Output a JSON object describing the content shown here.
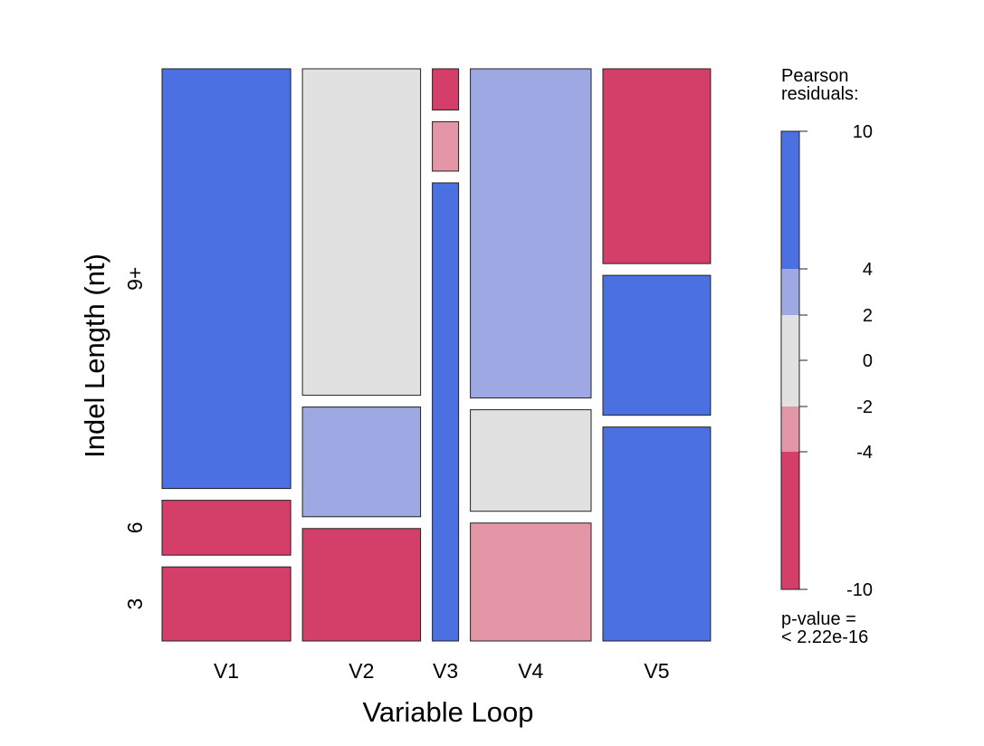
{
  "chart_data": {
    "type": "mosaic",
    "xlabel": "Variable Loop",
    "ylabel": "Indel Length (nt)",
    "x_categories": [
      "V1",
      "V2",
      "V3",
      "V4",
      "V5"
    ],
    "y_categories": [
      "3",
      "6",
      "9+"
    ],
    "cells": [
      {
        "x": "V1",
        "y": "3",
        "proportion": 0.135,
        "residual_band": "<-4"
      },
      {
        "x": "V1",
        "y": "6",
        "proportion": 0.1,
        "residual_band": "<-4"
      },
      {
        "x": "V1",
        "y": "9+",
        "proportion": 0.765,
        "residual_band": ">4"
      },
      {
        "x": "V2",
        "y": "3",
        "proportion": 0.205,
        "residual_band": "<-4"
      },
      {
        "x": "V2",
        "y": "6",
        "proportion": 0.2,
        "residual_band": "2:4"
      },
      {
        "x": "V2",
        "y": "9+",
        "proportion": 0.595,
        "residual_band": "-2:2"
      },
      {
        "x": "V3",
        "y": "3",
        "proportion": 0.835,
        "residual_band": ">4"
      },
      {
        "x": "V3",
        "y": "6",
        "proportion": 0.09,
        "residual_band": "-4:-2"
      },
      {
        "x": "V3",
        "y": "9+",
        "proportion": 0.075,
        "residual_band": "<-4"
      },
      {
        "x": "V4",
        "y": "3",
        "proportion": 0.215,
        "residual_band": "-4:-2"
      },
      {
        "x": "V4",
        "y": "6",
        "proportion": 0.185,
        "residual_band": "-2:2"
      },
      {
        "x": "V4",
        "y": "9+",
        "proportion": 0.6,
        "residual_band": "2:4"
      },
      {
        "x": "V5",
        "y": "3",
        "proportion": 0.39,
        "residual_band": ">4"
      },
      {
        "x": "V5",
        "y": "6",
        "proportion": 0.255,
        "residual_band": ">4"
      },
      {
        "x": "V5",
        "y": "9+",
        "proportion": 0.355,
        "residual_band": "<-4"
      }
    ],
    "x_proportions": [
      0.245,
      0.225,
      0.05,
      0.23,
      0.205
    ],
    "legend": {
      "title_line1": "Pearson",
      "title_line2": "residuals:",
      "ticks": [
        "10",
        "4",
        "2",
        "0",
        "-2",
        "-4",
        "-10"
      ],
      "tick_values": [
        10,
        4,
        2,
        0,
        -2,
        -4,
        -10
      ],
      "bands": [
        {
          "from": 4,
          "to": 10,
          "color": "#4a70e2"
        },
        {
          "from": 2,
          "to": 4,
          "color": "#9ea9e4"
        },
        {
          "from": -2,
          "to": 2,
          "color": "#e1e1e1"
        },
        {
          "from": -4,
          "to": -2,
          "color": "#e396a6"
        },
        {
          "from": -10,
          "to": -4,
          "color": "#d43f69"
        }
      ],
      "pvalue_line1": "p-value =",
      "pvalue_line2": "< 2.22e-16",
      "position": "right"
    },
    "colors": {
      ">4": "#4a70e2",
      "2:4": "#9ea9e4",
      "-2:2": "#e1e1e1",
      "-4:-2": "#e396a6",
      "<-4": "#d43f69"
    }
  }
}
